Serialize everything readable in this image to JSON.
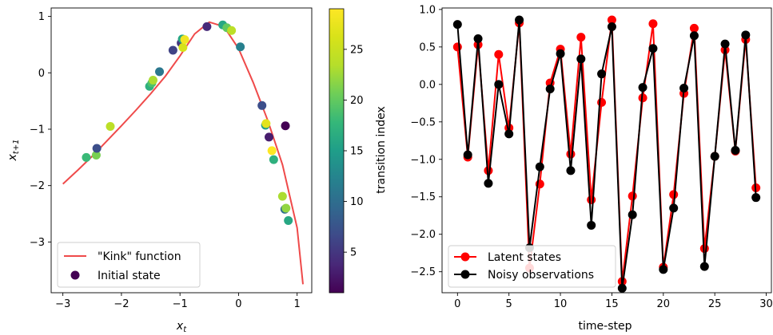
{
  "chart_data": [
    {
      "type": "scatter",
      "title": "",
      "xlabel": "x_t",
      "ylabel": "x_{t+1}",
      "xlim": [
        -3.2,
        1.25
      ],
      "ylim": [
        -3.9,
        1.15
      ],
      "xticks": [
        -3,
        -2,
        -1,
        0,
        1
      ],
      "yticks": [
        1,
        0,
        -1,
        -2,
        -3
      ],
      "grid": false,
      "legend": {
        "position": "lower-left",
        "entries": [
          "\"Kink\" function",
          "Initial state"
        ]
      },
      "function_curve": {
        "name": "\"Kink\" function",
        "color": "#ef4a4a",
        "x": [
          -3.0,
          -2.75,
          -2.5,
          -2.25,
          -2.0,
          -1.75,
          -1.5,
          -1.25,
          -1.0,
          -0.75,
          -0.5,
          -0.25,
          0.0,
          0.25,
          0.5,
          0.75,
          1.0,
          1.1
        ],
        "y": [
          -1.97,
          -1.73,
          -1.48,
          -1.21,
          -0.94,
          -0.66,
          -0.37,
          -0.06,
          0.3,
          0.69,
          0.9,
          0.82,
          0.43,
          -0.17,
          -0.85,
          -1.63,
          -2.75,
          -3.75
        ]
      },
      "initial_state": {
        "name": "Initial state",
        "x": 0.8,
        "y": -0.94
      },
      "points": [
        {
          "x": -2.6,
          "y": -1.5,
          "t": 18
        },
        {
          "x": -2.43,
          "y": -1.46,
          "t": 21
        },
        {
          "x": -2.42,
          "y": -1.34,
          "t": 7
        },
        {
          "x": -2.19,
          "y": -0.95,
          "t": 24
        },
        {
          "x": -1.52,
          "y": -0.24,
          "t": 17
        },
        {
          "x": -1.48,
          "y": -0.18,
          "t": 19
        },
        {
          "x": -1.46,
          "y": -0.13,
          "t": 23
        },
        {
          "x": -1.35,
          "y": 0.02,
          "t": 11
        },
        {
          "x": -1.12,
          "y": 0.4,
          "t": 6
        },
        {
          "x": -0.98,
          "y": 0.53,
          "t": 5
        },
        {
          "x": -0.96,
          "y": 0.6,
          "t": 16
        },
        {
          "x": -0.95,
          "y": 0.45,
          "t": 26
        },
        {
          "x": -0.92,
          "y": 0.59,
          "t": 28
        },
        {
          "x": -0.54,
          "y": 0.82,
          "t": 4
        },
        {
          "x": -0.27,
          "y": 0.85,
          "t": 16
        },
        {
          "x": -0.2,
          "y": 0.8,
          "t": 20
        },
        {
          "x": -0.12,
          "y": 0.75,
          "t": 24
        },
        {
          "x": 0.03,
          "y": 0.46,
          "t": 12
        },
        {
          "x": 0.4,
          "y": -0.58,
          "t": 7
        },
        {
          "x": 0.46,
          "y": -0.93,
          "t": 15
        },
        {
          "x": 0.47,
          "y": -0.9,
          "t": 27
        },
        {
          "x": 0.52,
          "y": -1.14,
          "t": 3
        },
        {
          "x": 0.57,
          "y": -1.38,
          "t": 29
        },
        {
          "x": 0.6,
          "y": -1.54,
          "t": 17
        },
        {
          "x": 0.75,
          "y": -2.19,
          "t": 23
        },
        {
          "x": 0.79,
          "y": -2.42,
          "t": 10
        },
        {
          "x": 0.81,
          "y": -2.4,
          "t": 22
        },
        {
          "x": 0.85,
          "y": -2.62,
          "t": 16
        }
      ],
      "colorbar": {
        "label": "transition index",
        "range": [
          1,
          29
        ],
        "ticks": [
          5,
          10,
          15,
          20,
          25
        ],
        "colormap": "viridis"
      }
    },
    {
      "type": "line",
      "title": "",
      "xlabel": "time-step",
      "ylabel": "",
      "xlim": [
        -1.5,
        30.5
      ],
      "ylim": [
        -2.78,
        1.02
      ],
      "xticks": [
        0,
        5,
        10,
        15,
        20,
        25,
        30
      ],
      "yticks": [
        1.0,
        0.5,
        0.0,
        -0.5,
        -1.0,
        -1.5,
        -2.0,
        -2.5
      ],
      "grid": false,
      "legend": {
        "position": "lower-left"
      },
      "x": [
        0,
        1,
        2,
        3,
        4,
        5,
        6,
        7,
        8,
        9,
        10,
        11,
        12,
        13,
        14,
        15,
        16,
        17,
        18,
        19,
        20,
        21,
        22,
        23,
        24,
        25,
        26,
        27,
        28,
        29
      ],
      "series": [
        {
          "name": "Latent states",
          "color": "#ff0000",
          "values": [
            0.5,
            -0.97,
            0.53,
            -1.15,
            0.4,
            -0.58,
            0.82,
            -2.45,
            -1.33,
            0.02,
            0.47,
            -0.93,
            0.63,
            -1.54,
            -0.24,
            0.86,
            -2.63,
            -1.49,
            -0.18,
            0.81,
            -2.44,
            -1.47,
            -0.12,
            0.75,
            -2.19,
            -0.96,
            0.46,
            -0.89,
            0.6,
            -1.38
          ]
        },
        {
          "name": "Noisy observations",
          "color": "#000000",
          "values": [
            0.8,
            -0.94,
            0.61,
            -1.32,
            0.0,
            -0.66,
            0.86,
            -2.18,
            -1.1,
            -0.06,
            0.41,
            -1.15,
            0.34,
            -1.88,
            0.14,
            0.77,
            -2.72,
            -1.74,
            -0.04,
            0.48,
            -2.47,
            -1.65,
            -0.05,
            0.65,
            -2.43,
            -0.96,
            0.54,
            -0.88,
            0.66,
            -1.51
          ]
        }
      ]
    }
  ]
}
